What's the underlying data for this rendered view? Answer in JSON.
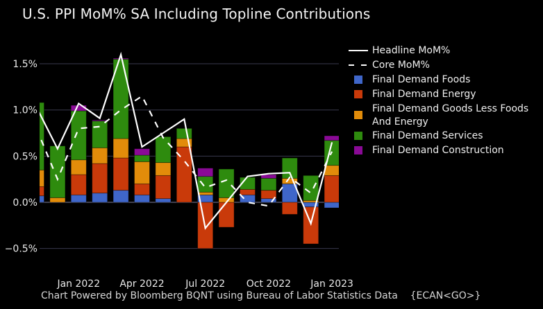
{
  "chart_data": {
    "type": "bar",
    "stacked": true,
    "title": "U.S. PPI MoM% SA Including Topline Contributions",
    "xlabel": "",
    "ylabel": "",
    "ylim": [
      -0.6,
      1.65
    ],
    "yticks": [
      1.5,
      1.0,
      0.5,
      0.0,
      -0.5
    ],
    "ytick_labels": [
      "1.5%",
      "1.0%",
      "0.5%",
      "0.0%",
      "−0.5%"
    ],
    "grid": true,
    "legend_position": "right",
    "categories": [
      "Nov 2021",
      "Dec 2021",
      "Jan 2022",
      "Feb 2022",
      "Mar 2022",
      "Apr 2022",
      "May 2022",
      "Jun 2022",
      "Jul 2022",
      "Aug 2022",
      "Sep 2022",
      "Oct 2022",
      "Nov 2022",
      "Dec 2022",
      "Jan 2023"
    ],
    "xtick_labels": [
      {
        "label": "Jan 2022",
        "category": "Jan 2022"
      },
      {
        "label": "Apr 2022",
        "category": "Apr 2022"
      },
      {
        "label": "Jul 2022",
        "category": "Jul 2022"
      },
      {
        "label": "Oct 2022",
        "category": "Oct 2022"
      },
      {
        "label": "Jan 2023",
        "category": "Jan 2023"
      }
    ],
    "series": [
      {
        "name": "Final Demand Foods",
        "kind": "bar",
        "color": "#3f66c9",
        "values": [
          0.07,
          0.0,
          0.08,
          0.1,
          0.13,
          0.08,
          0.04,
          0.0,
          0.08,
          0.0,
          0.08,
          0.04,
          0.2,
          -0.05,
          -0.06
        ]
      },
      {
        "name": "Final Demand Energy",
        "kind": "bar",
        "color": "#c93a0a",
        "values": [
          0.1,
          0.0,
          0.22,
          0.32,
          0.35,
          0.12,
          0.25,
          0.6,
          -0.5,
          -0.27,
          0.06,
          0.09,
          -0.13,
          -0.4,
          0.29
        ]
      },
      {
        "name": "Final Demand Goods Less Foods And Energy",
        "kind": "bar",
        "color": "#e28c0a",
        "values": [
          0.18,
          0.05,
          0.16,
          0.17,
          0.21,
          0.24,
          0.14,
          0.09,
          0.03,
          0.05,
          0.0,
          0.0,
          0.06,
          0.02,
          0.11
        ]
      },
      {
        "name": "Final Demand Services",
        "kind": "bar",
        "color": "#2e8b0e",
        "values": [
          0.73,
          0.56,
          0.53,
          0.29,
          0.86,
          0.07,
          0.28,
          0.11,
          0.17,
          0.31,
          0.13,
          0.13,
          0.22,
          0.27,
          0.27
        ]
      },
      {
        "name": "Final Demand Construction",
        "kind": "bar",
        "color": "#8a0a96",
        "values": [
          0.0,
          0.0,
          0.06,
          0.01,
          0.01,
          0.07,
          0.0,
          0.0,
          0.09,
          0.0,
          0.0,
          0.04,
          0.0,
          0.0,
          0.05
        ]
      },
      {
        "name": "Headline MoM%",
        "kind": "line",
        "style": "solid",
        "color": "#ffffff",
        "values": [
          1.03,
          0.58,
          1.07,
          0.91,
          1.6,
          0.6,
          0.75,
          0.9,
          -0.28,
          0.0,
          0.28,
          0.31,
          0.32,
          -0.23,
          0.65
        ]
      },
      {
        "name": "Core MoM%",
        "kind": "line",
        "style": "dashed",
        "color": "#ffffff",
        "values": [
          0.8,
          0.25,
          0.8,
          0.82,
          1.0,
          1.15,
          0.7,
          0.45,
          0.16,
          0.24,
          0.0,
          -0.04,
          0.27,
          0.1,
          0.55
        ]
      }
    ],
    "footer": "Chart Powered by Bloomberg BQNT using Bureau of Labor Statistics Data",
    "footer_code": "{ECAN<GO>}"
  },
  "legend": {
    "items": [
      {
        "label": "Headline MoM%",
        "key": "solid-line"
      },
      {
        "label": "Core MoM%",
        "key": "dashed-line"
      },
      {
        "label": "Final Demand Foods",
        "key": "swatch",
        "color": "#3f66c9"
      },
      {
        "label": "Final Demand Energy",
        "key": "swatch",
        "color": "#c93a0a"
      },
      {
        "label": "Final Demand Goods Less Foods And Energy",
        "key": "swatch",
        "color": "#e28c0a"
      },
      {
        "label": "Final Demand Services",
        "key": "swatch",
        "color": "#2e8b0e"
      },
      {
        "label": "Final Demand Construction",
        "key": "swatch",
        "color": "#8a0a96"
      }
    ]
  },
  "footer_text": "Chart Powered by Bloomberg BQNT using Bureau of Labor Statistics Data    {ECAN<GO>}"
}
